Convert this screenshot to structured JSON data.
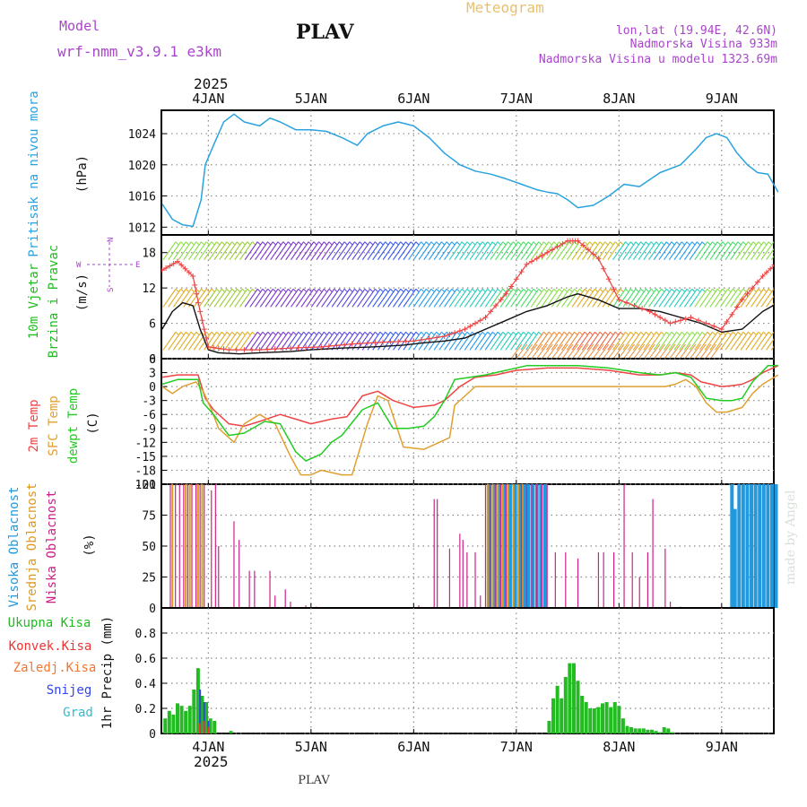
{
  "header": {
    "title": "PLAV",
    "subtitle": "Meteogram",
    "model_label": "Model",
    "model_name": "wrf-nmm_v3.9.1 e3km",
    "lonlat": "lon,lat (19.94E, 42.6N)",
    "elevation": "Nadmorska Visina 933m",
    "model_elevation": "Nadmorska Visina u modelu 1323.69m",
    "footer": "PLAV",
    "credit": "made by Angel",
    "year": "2025"
  },
  "colors": {
    "pressure": "#29a3e0",
    "temp2m": "#ee4444",
    "sfc": "#e0a030",
    "dewpt": "#22cc22",
    "high_cloud": "#2299dd",
    "mid_cloud": "#dd9922",
    "low_cloud": "#cc2288",
    "wind_label": "#22bb22",
    "purple": "#aa44cc",
    "total_precip": "#22bb22",
    "convective": "#ee3333",
    "freezing": "#ee7733",
    "snow": "#3344ee",
    "hail": "#33bbcc"
  },
  "chart_data": [
    {
      "type": "line",
      "panel": "pressure",
      "ylabel": "Pritisak na nivou mora",
      "unit": "(hPa)",
      "ylim": [
        1011,
        1027
      ],
      "yticks": [
        1012,
        1016,
        1020,
        1024
      ],
      "x_days": [
        "4JAN",
        "5JAN",
        "6JAN",
        "7JAN",
        "8JAN",
        "9JAN"
      ],
      "x": [
        3.55,
        3.65,
        3.75,
        3.85,
        3.93,
        3.97,
        4.05,
        4.15,
        4.25,
        4.35,
        4.5,
        4.6,
        4.7,
        4.85,
        5.0,
        5.15,
        5.3,
        5.45,
        5.55,
        5.7,
        5.85,
        6.0,
        6.15,
        6.3,
        6.45,
        6.6,
        6.75,
        6.9,
        7.05,
        7.2,
        7.3,
        7.4,
        7.5,
        7.6,
        7.75,
        7.9,
        8.05,
        8.2,
        8.4,
        8.6,
        8.75,
        8.85,
        8.95,
        9.05,
        9.15,
        9.25,
        9.35,
        9.45,
        9.55
      ],
      "values": [
        1015,
        1013,
        1012.3,
        1012.1,
        1015.5,
        1020,
        1022.5,
        1025.5,
        1026.5,
        1025.5,
        1025,
        1026,
        1025.5,
        1024.5,
        1024.5,
        1024.3,
        1023.5,
        1022.5,
        1024,
        1025,
        1025.5,
        1025,
        1023.5,
        1021.5,
        1020,
        1019.2,
        1018.8,
        1018.2,
        1017.5,
        1016.8,
        1016.5,
        1016.3,
        1015.5,
        1014.5,
        1014.8,
        1016,
        1017.5,
        1017.2,
        1019,
        1020,
        1022,
        1023.5,
        1024,
        1023.5,
        1021.5,
        1020,
        1019,
        1018.8,
        1016.5
      ]
    },
    {
      "type": "line",
      "panel": "wind",
      "ylabel": "10m Vjetar Brzina i Pravac",
      "unit": "(m/s)",
      "ylim": [
        0,
        21
      ],
      "yticks": [
        0,
        6,
        12,
        18
      ],
      "compass": [
        "N",
        "S",
        "W",
        "E"
      ],
      "series": [
        {
          "name": "speed",
          "x": [
            3.55,
            3.65,
            3.75,
            3.85,
            3.92,
            4.0,
            4.1,
            4.3,
            4.5,
            4.8,
            5.0,
            5.3,
            5.6,
            5.9,
            6.1,
            6.3,
            6.5,
            6.7,
            6.9,
            7.1,
            7.3,
            7.5,
            7.6,
            7.8,
            8.0,
            8.2,
            8.4,
            8.6,
            8.8,
            9.0,
            9.2,
            9.4,
            9.55
          ],
          "values": [
            5,
            8,
            9.5,
            9,
            5,
            1.5,
            1,
            0.8,
            1,
            1.2,
            1.5,
            1.8,
            2,
            2.3,
            2.7,
            3,
            3.5,
            5,
            6.5,
            8,
            9,
            10.5,
            11,
            10,
            8.5,
            8.5,
            8,
            7,
            6,
            4.5,
            5,
            8,
            9.5
          ]
        },
        {
          "name": "gust",
          "x": [
            3.55,
            3.7,
            3.85,
            3.92,
            4.0,
            4.2,
            4.5,
            4.8,
            5.1,
            5.4,
            5.7,
            6.0,
            6.3,
            6.5,
            6.7,
            6.9,
            7.1,
            7.3,
            7.5,
            7.6,
            7.8,
            8.0,
            8.3,
            8.5,
            8.7,
            9.0,
            9.2,
            9.4,
            9.55
          ],
          "values": [
            15,
            16.5,
            14,
            8,
            2,
            1.5,
            1.5,
            1.8,
            2,
            2.5,
            2.8,
            3,
            3.8,
            5,
            7,
            11,
            16,
            18,
            20,
            20,
            17,
            10,
            8,
            6,
            7,
            5,
            10,
            14,
            16.5
          ]
        }
      ],
      "barb_rows": [
        {
          "y": 18,
          "colors": [
            "#88dd44",
            "#99cc33",
            "#7733cc",
            "#7733cc",
            "#5544dd",
            "#3355ee",
            "#2299ee",
            "#22ccbb",
            "#44dd66",
            "#88dd44",
            "#ccbb22",
            "#22ccbb",
            "#2299ee",
            "#44dd66",
            "#88dd44"
          ]
        },
        {
          "y": 10,
          "colors": [
            "#ddaa22",
            "#99cc33",
            "#7733cc",
            "#7733cc",
            "#5544dd",
            "#3355ee",
            "#2299ee",
            "#22ccbb",
            "#44dd66",
            "#88dd44",
            "#ddaa22",
            "#44dd66",
            "#22ccbb",
            "#88dd44",
            "#ddaa22"
          ]
        },
        {
          "y": 2.7,
          "colors": [
            "#ddaa22",
            "#ddaa22",
            "#7733cc",
            "#5544dd",
            "#5544dd",
            "#3355ee",
            "#2299ee",
            "#2299ee",
            "#22ccbb",
            "#ee8833",
            "#ee6644",
            "#ddaa22",
            "#88dd44",
            "#ddaa22",
            "#ddaa22"
          ]
        }
      ]
    },
    {
      "type": "line",
      "panel": "temperature",
      "ylabel": [
        "2m Temp",
        "SFC Temp",
        "dewpt Temp"
      ],
      "unit": "(C)",
      "ylim": [
        -21,
        6
      ],
      "yticks": [
        6,
        3,
        0,
        -3,
        -6,
        -9,
        -12,
        -15,
        -18,
        -21
      ],
      "series": [
        {
          "name": "2m Temp",
          "x": [
            3.55,
            3.7,
            3.9,
            3.97,
            4.05,
            4.2,
            4.35,
            4.5,
            4.7,
            4.85,
            5.0,
            5.2,
            5.35,
            5.5,
            5.65,
            5.8,
            6.0,
            6.2,
            6.3,
            6.45,
            6.6,
            6.8,
            7.0,
            7.3,
            7.6,
            7.9,
            8.2,
            8.4,
            8.55,
            8.7,
            8.8,
            8.9,
            9.0,
            9.1,
            9.2,
            9.3,
            9.4,
            9.55
          ],
          "values": [
            2,
            2.5,
            2.5,
            -2.5,
            -5,
            -8,
            -8.5,
            -7.5,
            -6,
            -7,
            -8,
            -7,
            -6.5,
            -2,
            -1,
            -3,
            -4.5,
            -4,
            -3,
            0,
            2,
            2.5,
            3.5,
            4,
            4,
            3.5,
            2.5,
            2.5,
            3,
            2.5,
            1,
            0.5,
            0,
            0.2,
            0.5,
            1.5,
            3,
            4.5
          ]
        },
        {
          "name": "SFC Temp",
          "x": [
            3.55,
            3.65,
            3.75,
            3.88,
            3.95,
            4.03,
            4.1,
            4.25,
            4.35,
            4.5,
            4.65,
            4.8,
            4.9,
            5.0,
            5.1,
            5.3,
            5.4,
            5.55,
            5.65,
            5.75,
            5.9,
            6.1,
            6.2,
            6.35,
            6.4,
            6.5,
            6.6,
            6.8,
            7.0,
            7.3,
            7.6,
            7.9,
            8.2,
            8.35,
            8.45,
            8.55,
            8.65,
            8.75,
            8.85,
            8.95,
            9.05,
            9.2,
            9.3,
            9.4,
            9.55
          ],
          "values": [
            0,
            -1.5,
            0,
            1,
            -1,
            -5,
            -9,
            -12,
            -8,
            -6,
            -8,
            -15,
            -19,
            -19,
            -18,
            -19,
            -19,
            -8,
            -2,
            -3,
            -13,
            -13.5,
            -12.5,
            -11,
            -4,
            -2,
            0,
            0,
            0,
            0,
            0,
            0,
            0,
            0,
            0,
            0.5,
            1.5,
            0,
            -3.5,
            -5.5,
            -5.5,
            -4.5,
            -1.5,
            0.5,
            2.5
          ]
        },
        {
          "name": "dewpt Temp",
          "x": [
            3.55,
            3.7,
            3.9,
            3.95,
            4.05,
            4.2,
            4.35,
            4.55,
            4.7,
            4.85,
            4.95,
            5.1,
            5.2,
            5.3,
            5.5,
            5.65,
            5.8,
            5.95,
            6.1,
            6.2,
            6.3,
            6.4,
            6.55,
            6.7,
            6.9,
            7.1,
            7.3,
            7.6,
            7.9,
            8.2,
            8.4,
            8.55,
            8.7,
            8.85,
            9.0,
            9.1,
            9.2,
            9.3,
            9.45,
            9.55
          ],
          "values": [
            0.5,
            1.5,
            1.5,
            -3.5,
            -6,
            -10.5,
            -10,
            -7.5,
            -8,
            -14,
            -16,
            -14.5,
            -12,
            -10.5,
            -5,
            -3.5,
            -9,
            -9,
            -8.5,
            -6.5,
            -3,
            1.5,
            2,
            2.5,
            3.5,
            4.5,
            4.5,
            4.5,
            4,
            3,
            2.5,
            3,
            2,
            -2.5,
            -3,
            -3,
            -2.5,
            1,
            4.5,
            4.5
          ]
        }
      ]
    },
    {
      "type": "bar",
      "panel": "clouds",
      "ylabel": [
        "Visoka Oblacnost",
        "Srednja Oblacnost",
        "Niska Oblacnost"
      ],
      "unit": "(%)",
      "ylim": [
        0,
        100
      ],
      "yticks": [
        0,
        25,
        50,
        75,
        100
      ],
      "series": [
        {
          "name": "Niska Oblacnost",
          "x": [
            3.63,
            3.68,
            3.72,
            3.76,
            3.8,
            3.84,
            3.88,
            3.92,
            3.96,
            4.03,
            4.07,
            4.1,
            4.25,
            4.3,
            4.4,
            4.45,
            4.6,
            4.65,
            4.75,
            4.8,
            4.95,
            5.05,
            6.05,
            6.2,
            6.23,
            6.35,
            6.45,
            6.48,
            6.52,
            6.6,
            6.65,
            6.7,
            6.75,
            6.8,
            6.85,
            6.9,
            7.05,
            7.1,
            7.15,
            7.2,
            7.25,
            7.3,
            7.38,
            7.48,
            7.6,
            7.8,
            7.85,
            7.95,
            8.05,
            8.13,
            8.2,
            8.28,
            8.33,
            8.45,
            8.5,
            8.6
          ],
          "values": [
            100,
            100,
            100,
            100,
            100,
            100,
            100,
            100,
            100,
            95,
            100,
            50,
            70,
            55,
            30,
            30,
            30,
            10,
            15,
            5,
            2,
            1,
            2,
            88,
            88,
            48,
            60,
            55,
            45,
            45,
            10,
            100,
            100,
            100,
            100,
            100,
            100,
            100,
            100,
            100,
            100,
            100,
            45,
            45,
            40,
            45,
            45,
            45,
            100,
            45,
            25,
            45,
            88,
            48,
            5,
            1
          ]
        },
        {
          "name": "Srednja Oblacnost",
          "x": [
            3.65,
            3.78,
            3.82,
            3.9,
            3.94,
            6.72,
            6.77,
            6.82,
            6.87,
            6.92,
            6.97,
            7.02,
            7.06
          ],
          "values": [
            100,
            100,
            100,
            100,
            100,
            100,
            100,
            100,
            100,
            100,
            100,
            100,
            100
          ]
        },
        {
          "name": "Visoka Oblacnost",
          "x": [
            6.74,
            6.79,
            6.84,
            6.89,
            6.94,
            6.99,
            7.04,
            7.08,
            7.12,
            7.16,
            7.2,
            7.24,
            7.28,
            9.1,
            9.13,
            9.17,
            9.21,
            9.25,
            9.29,
            9.33,
            9.37,
            9.41,
            9.45,
            9.49,
            9.53
          ],
          "values": [
            100,
            100,
            100,
            100,
            100,
            100,
            100,
            100,
            100,
            100,
            100,
            100,
            100,
            100,
            80,
            100,
            100,
            100,
            100,
            100,
            100,
            100,
            100,
            100,
            100
          ]
        }
      ]
    },
    {
      "type": "bar",
      "panel": "precipitation",
      "ylabel": "1hr Precip (mm)",
      "legend": [
        "Ukupna Kisa",
        "Konvek.Kisa",
        "Zaledj.Kisa",
        "Snijeg",
        "Grad"
      ],
      "ylim": [
        0,
        1.0
      ],
      "yticks": [
        0,
        0.2,
        0.4,
        0.6,
        0.8
      ],
      "series": [
        {
          "name": "Ukupna Kisa",
          "x": [
            3.58,
            3.62,
            3.66,
            3.7,
            3.74,
            3.78,
            3.82,
            3.86,
            3.9,
            3.94,
            3.98,
            4.02,
            4.06,
            4.22,
            7.32,
            7.36,
            7.4,
            7.44,
            7.48,
            7.52,
            7.56,
            7.6,
            7.64,
            7.68,
            7.72,
            7.76,
            7.8,
            7.84,
            7.88,
            7.92,
            7.96,
            8.0,
            8.04,
            8.08,
            8.12,
            8.16,
            8.2,
            8.24,
            8.28,
            8.32,
            8.36,
            8.4,
            8.44,
            8.48,
            8.52
          ],
          "values": [
            0.12,
            0.18,
            0.15,
            0.24,
            0.22,
            0.18,
            0.22,
            0.35,
            0.52,
            0.3,
            0.25,
            0.12,
            0.1,
            0.02,
            0.1,
            0.28,
            0.38,
            0.28,
            0.45,
            0.56,
            0.56,
            0.42,
            0.3,
            0.25,
            0.2,
            0.2,
            0.21,
            0.24,
            0.25,
            0.21,
            0.25,
            0.22,
            0.12,
            0.06,
            0.05,
            0.04,
            0.04,
            0.04,
            0.03,
            0.03,
            0.02,
            0.01,
            0.05,
            0.04,
            0.01
          ]
        },
        {
          "name": "Snijeg",
          "x": [
            3.92,
            3.96,
            4.0
          ],
          "values": [
            0.35,
            0.25,
            0.1
          ]
        },
        {
          "name": "Konvek.Kisa",
          "x": [
            3.9,
            3.94,
            3.98
          ],
          "values": [
            0.08,
            0.1,
            0.05
          ]
        }
      ]
    }
  ]
}
